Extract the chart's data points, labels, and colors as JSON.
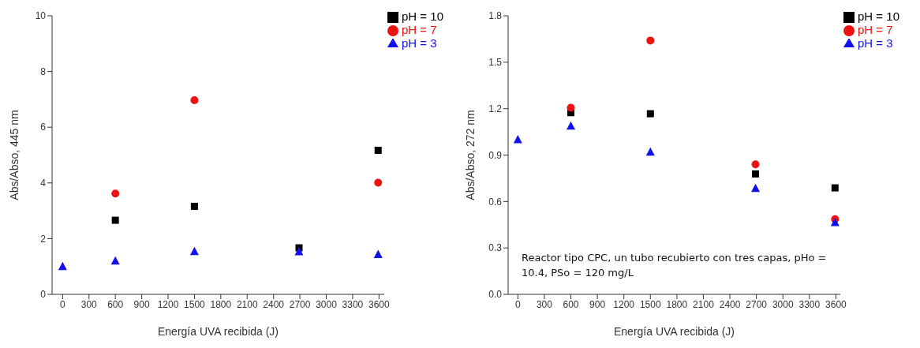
{
  "chart_data": [
    {
      "type": "scatter",
      "xlabel": "Energía UVA recibida (J)",
      "ylabel": "Abs/Abso, 445  nm",
      "x": [
        0,
        600,
        1500,
        2690,
        3590
      ],
      "xlim": [
        -120,
        3660
      ],
      "xticks": [
        0,
        300,
        600,
        900,
        1200,
        1500,
        1800,
        2100,
        2400,
        2700,
        3000,
        3300,
        3600
      ],
      "ylim": [
        0,
        10
      ],
      "yticks": [
        0,
        2,
        4,
        6,
        8,
        10
      ],
      "legend": "top right",
      "grid": false,
      "series": [
        {
          "name": "pH = 10",
          "color": "#000000",
          "marker": "square",
          "values": [
            null,
            2.66,
            3.16,
            1.67,
            5.17
          ]
        },
        {
          "name": "pH = 7",
          "color": "#ee1111",
          "marker": "circle",
          "values": [
            null,
            3.62,
            6.97,
            null,
            4.01
          ]
        },
        {
          "name": "pH = 3",
          "color": "#1111ee",
          "marker": "triangle",
          "values": [
            1.0,
            1.2,
            1.54,
            1.53,
            1.43
          ]
        }
      ]
    },
    {
      "type": "scatter",
      "xlabel": "Energía UVA recibida (J)",
      "ylabel": "Abs/Abso, 272 nm",
      "x": [
        0,
        600,
        1500,
        2690,
        3590
      ],
      "xlim": [
        -110,
        3650
      ],
      "xticks": [
        0,
        300,
        600,
        900,
        1200,
        1500,
        1800,
        2100,
        2400,
        2700,
        3000,
        3300,
        3600
      ],
      "ylim": [
        0,
        1.8
      ],
      "yticks": [
        {
          "value": 0,
          "label": "0.0"
        },
        0.3,
        0.6,
        0.9,
        1.2,
        1.5,
        1.8
      ],
      "legend": "top right",
      "grid": false,
      "annotations": [
        "Reactor tipo CPC, un tubo recubierto con tres capas, pHo = 10.4, PSo = 120 mg/L"
      ],
      "series": [
        {
          "name": "pH = 10",
          "color": "#000000",
          "marker": "square",
          "values": [
            null,
            1.174,
            1.167,
            0.778,
            0.688
          ]
        },
        {
          "name": "pH = 7",
          "color": "#ee1111",
          "marker": "circle",
          "values": [
            null,
            1.206,
            1.64,
            0.84,
            0.486
          ]
        },
        {
          "name": "pH = 3",
          "color": "#1111ee",
          "marker": "triangle",
          "values": [
            1.0,
            1.088,
            0.919,
            0.684,
            0.464
          ]
        }
      ]
    }
  ]
}
